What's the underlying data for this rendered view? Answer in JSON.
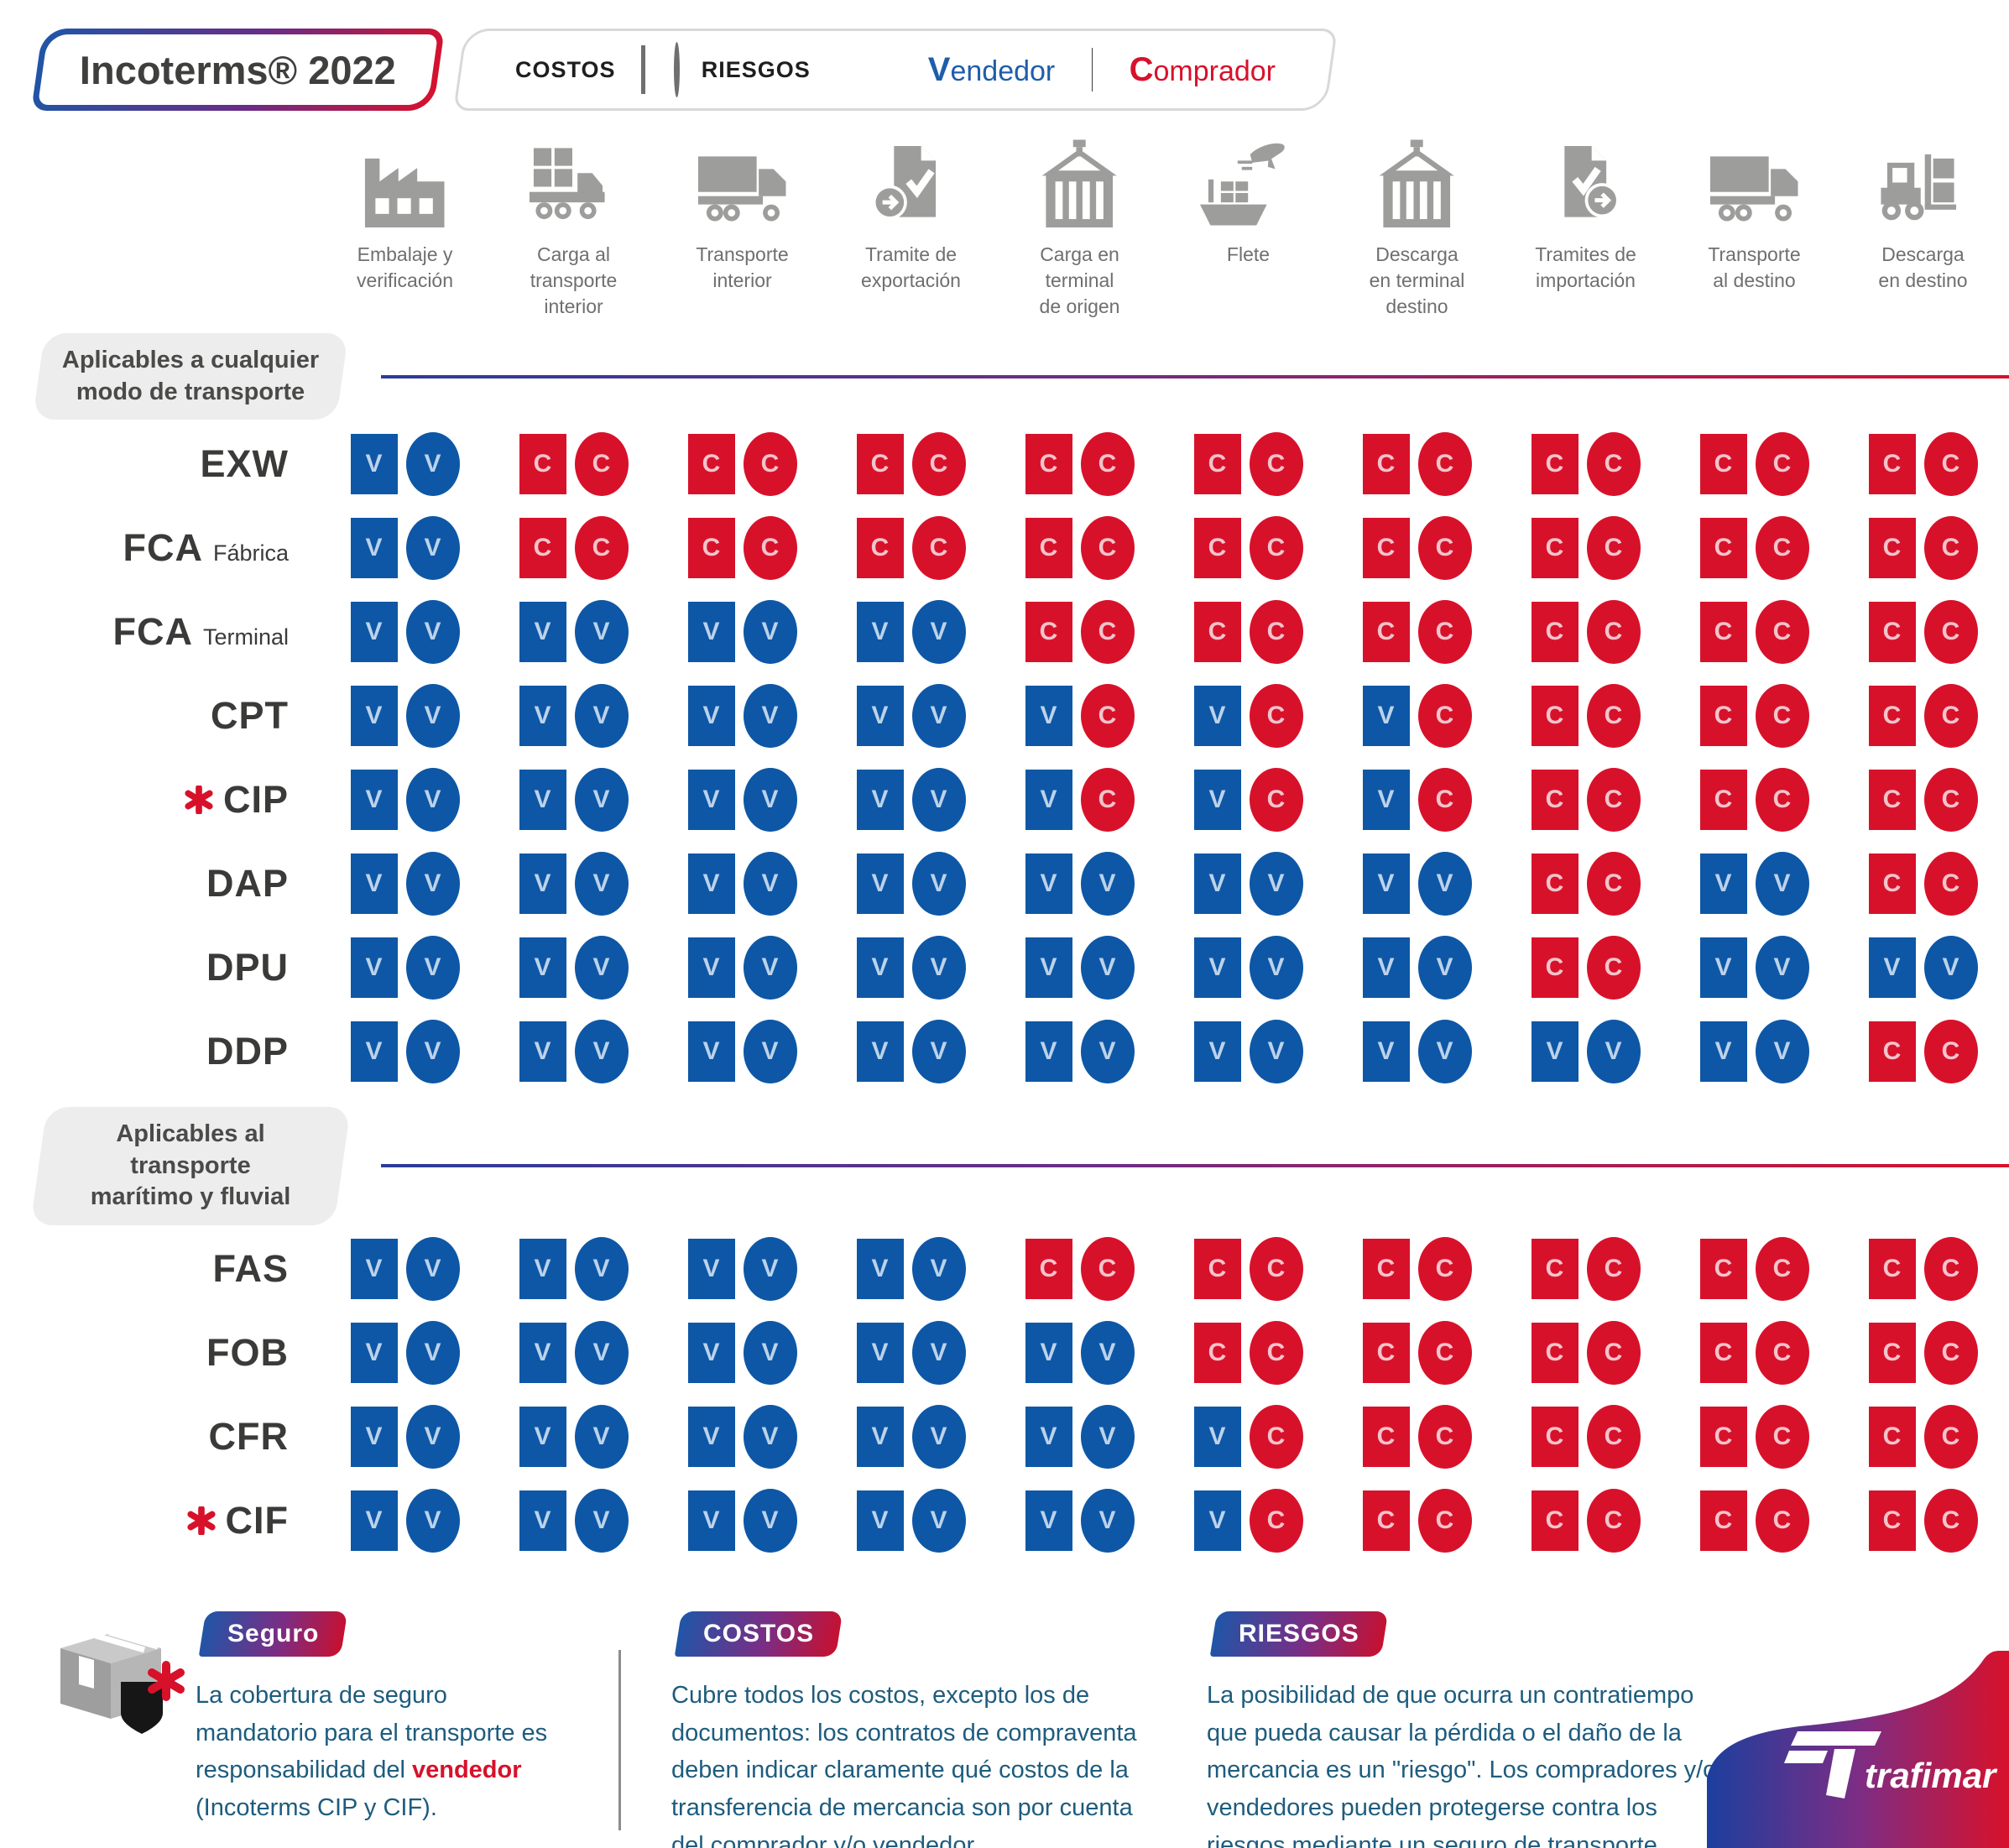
{
  "header": {
    "title": "Incoterms® 2022",
    "legend": {
      "costos": "COSTOS",
      "riesgos": "RIESGOS",
      "vendedor": "Vendedor",
      "comprador": "Comprador"
    }
  },
  "colors": {
    "vendedor_blue": "#0d57a6",
    "comprador_red": "#d8112b",
    "icon_gray": "#9d9d9c",
    "legend_shape_gray": "#706f6f",
    "footer_text_teal": "#1d5c7e"
  },
  "columns": [
    {
      "icon": "factory-icon",
      "lines": [
        "Embalaje y",
        "verificación"
      ]
    },
    {
      "icon": "loading-truck-icon",
      "lines": [
        "Carga al",
        "transporte",
        "interior"
      ]
    },
    {
      "icon": "truck-icon",
      "lines": [
        "Transporte",
        "interior"
      ]
    },
    {
      "icon": "export-document-icon",
      "lines": [
        "Tramite de",
        "exportación"
      ]
    },
    {
      "icon": "container-crane-icon",
      "lines": [
        "Carga en",
        "terminal",
        "de origen"
      ]
    },
    {
      "icon": "ship-plane-icon",
      "lines": [
        "Flete"
      ]
    },
    {
      "icon": "container-crane-icon",
      "lines": [
        "Descarga",
        "en terminal",
        "destino"
      ]
    },
    {
      "icon": "import-document-icon",
      "lines": [
        "Tramites de",
        "importación"
      ]
    },
    {
      "icon": "truck-icon",
      "lines": [
        "Transporte",
        "al destino"
      ]
    },
    {
      "icon": "forklift-icon",
      "lines": [
        "Descarga",
        "en destino"
      ]
    }
  ],
  "marker_legend_note": "cells are two-character strings: first char = costos square, second char = riesgos circle; V = vendedor (blue), C = comprador (red)",
  "sections": [
    {
      "label_lines": [
        "Aplicables a cualquier",
        "modo de transporte"
      ],
      "rows": [
        {
          "code": "EXW",
          "variant": "",
          "asterisk": false,
          "cells": [
            "VV",
            "CC",
            "CC",
            "CC",
            "CC",
            "CC",
            "CC",
            "CC",
            "CC",
            "CC"
          ]
        },
        {
          "code": "FCA",
          "variant": "Fábrica",
          "asterisk": false,
          "cells": [
            "VV",
            "CC",
            "CC",
            "CC",
            "CC",
            "CC",
            "CC",
            "CC",
            "CC",
            "CC"
          ]
        },
        {
          "code": "FCA",
          "variant": "Terminal",
          "asterisk": false,
          "cells": [
            "VV",
            "VV",
            "VV",
            "VV",
            "CC",
            "CC",
            "CC",
            "CC",
            "CC",
            "CC"
          ]
        },
        {
          "code": "CPT",
          "variant": "",
          "asterisk": false,
          "cells": [
            "VV",
            "VV",
            "VV",
            "VV",
            "VC",
            "VC",
            "VC",
            "CC",
            "CC",
            "CC"
          ]
        },
        {
          "code": "CIP",
          "variant": "",
          "asterisk": true,
          "cells": [
            "VV",
            "VV",
            "VV",
            "VV",
            "VC",
            "VC",
            "VC",
            "CC",
            "CC",
            "CC"
          ]
        },
        {
          "code": "DAP",
          "variant": "",
          "asterisk": false,
          "cells": [
            "VV",
            "VV",
            "VV",
            "VV",
            "VV",
            "VV",
            "VV",
            "CC",
            "VV",
            "CC"
          ]
        },
        {
          "code": "DPU",
          "variant": "",
          "asterisk": false,
          "cells": [
            "VV",
            "VV",
            "VV",
            "VV",
            "VV",
            "VV",
            "VV",
            "CC",
            "VV",
            "VV"
          ]
        },
        {
          "code": "DDP",
          "variant": "",
          "asterisk": false,
          "cells": [
            "VV",
            "VV",
            "VV",
            "VV",
            "VV",
            "VV",
            "VV",
            "VV",
            "VV",
            "CC"
          ]
        }
      ]
    },
    {
      "label_lines": [
        "Aplicables al transporte",
        "marítimo y fluvial"
      ],
      "rows": [
        {
          "code": "FAS",
          "variant": "",
          "asterisk": false,
          "cells": [
            "VV",
            "VV",
            "VV",
            "VV",
            "CC",
            "CC",
            "CC",
            "CC",
            "CC",
            "CC"
          ]
        },
        {
          "code": "FOB",
          "variant": "",
          "asterisk": false,
          "cells": [
            "VV",
            "VV",
            "VV",
            "VV",
            "VV",
            "CC",
            "CC",
            "CC",
            "CC",
            "CC"
          ]
        },
        {
          "code": "CFR",
          "variant": "",
          "asterisk": false,
          "cells": [
            "VV",
            "VV",
            "VV",
            "VV",
            "VV",
            "VC",
            "CC",
            "CC",
            "CC",
            "CC"
          ]
        },
        {
          "code": "CIF",
          "variant": "",
          "asterisk": true,
          "cells": [
            "VV",
            "VV",
            "VV",
            "VV",
            "VV",
            "VC",
            "CC",
            "CC",
            "CC",
            "CC"
          ]
        }
      ]
    }
  ],
  "footer": {
    "seguro": {
      "badge": "Seguro",
      "text_before": "La cobertura de seguro mandatorio para el transporte es responsabilidad del ",
      "highlight": "vendedor",
      "text_after": " (Incoterms CIP y CIF)."
    },
    "costos": {
      "badge": "COSTOS",
      "text": "Cubre todos los costos, excepto los de documentos: los contratos de compraventa deben indicar claramente qué costos de la transferencia de mercancia son por cuenta del comprador y/o vendedor."
    },
    "riesgos": {
      "badge": "RIESGOS",
      "text": "La posibilidad de que ocurra un contratiempo que pueda causar la pérdida o el daño de la mercancia es un \"riesgo\". Los compradores y/o vendedores pueden protegerse contra los riesgos mediante un seguro de transporte."
    },
    "logo_text": "trafimar"
  }
}
